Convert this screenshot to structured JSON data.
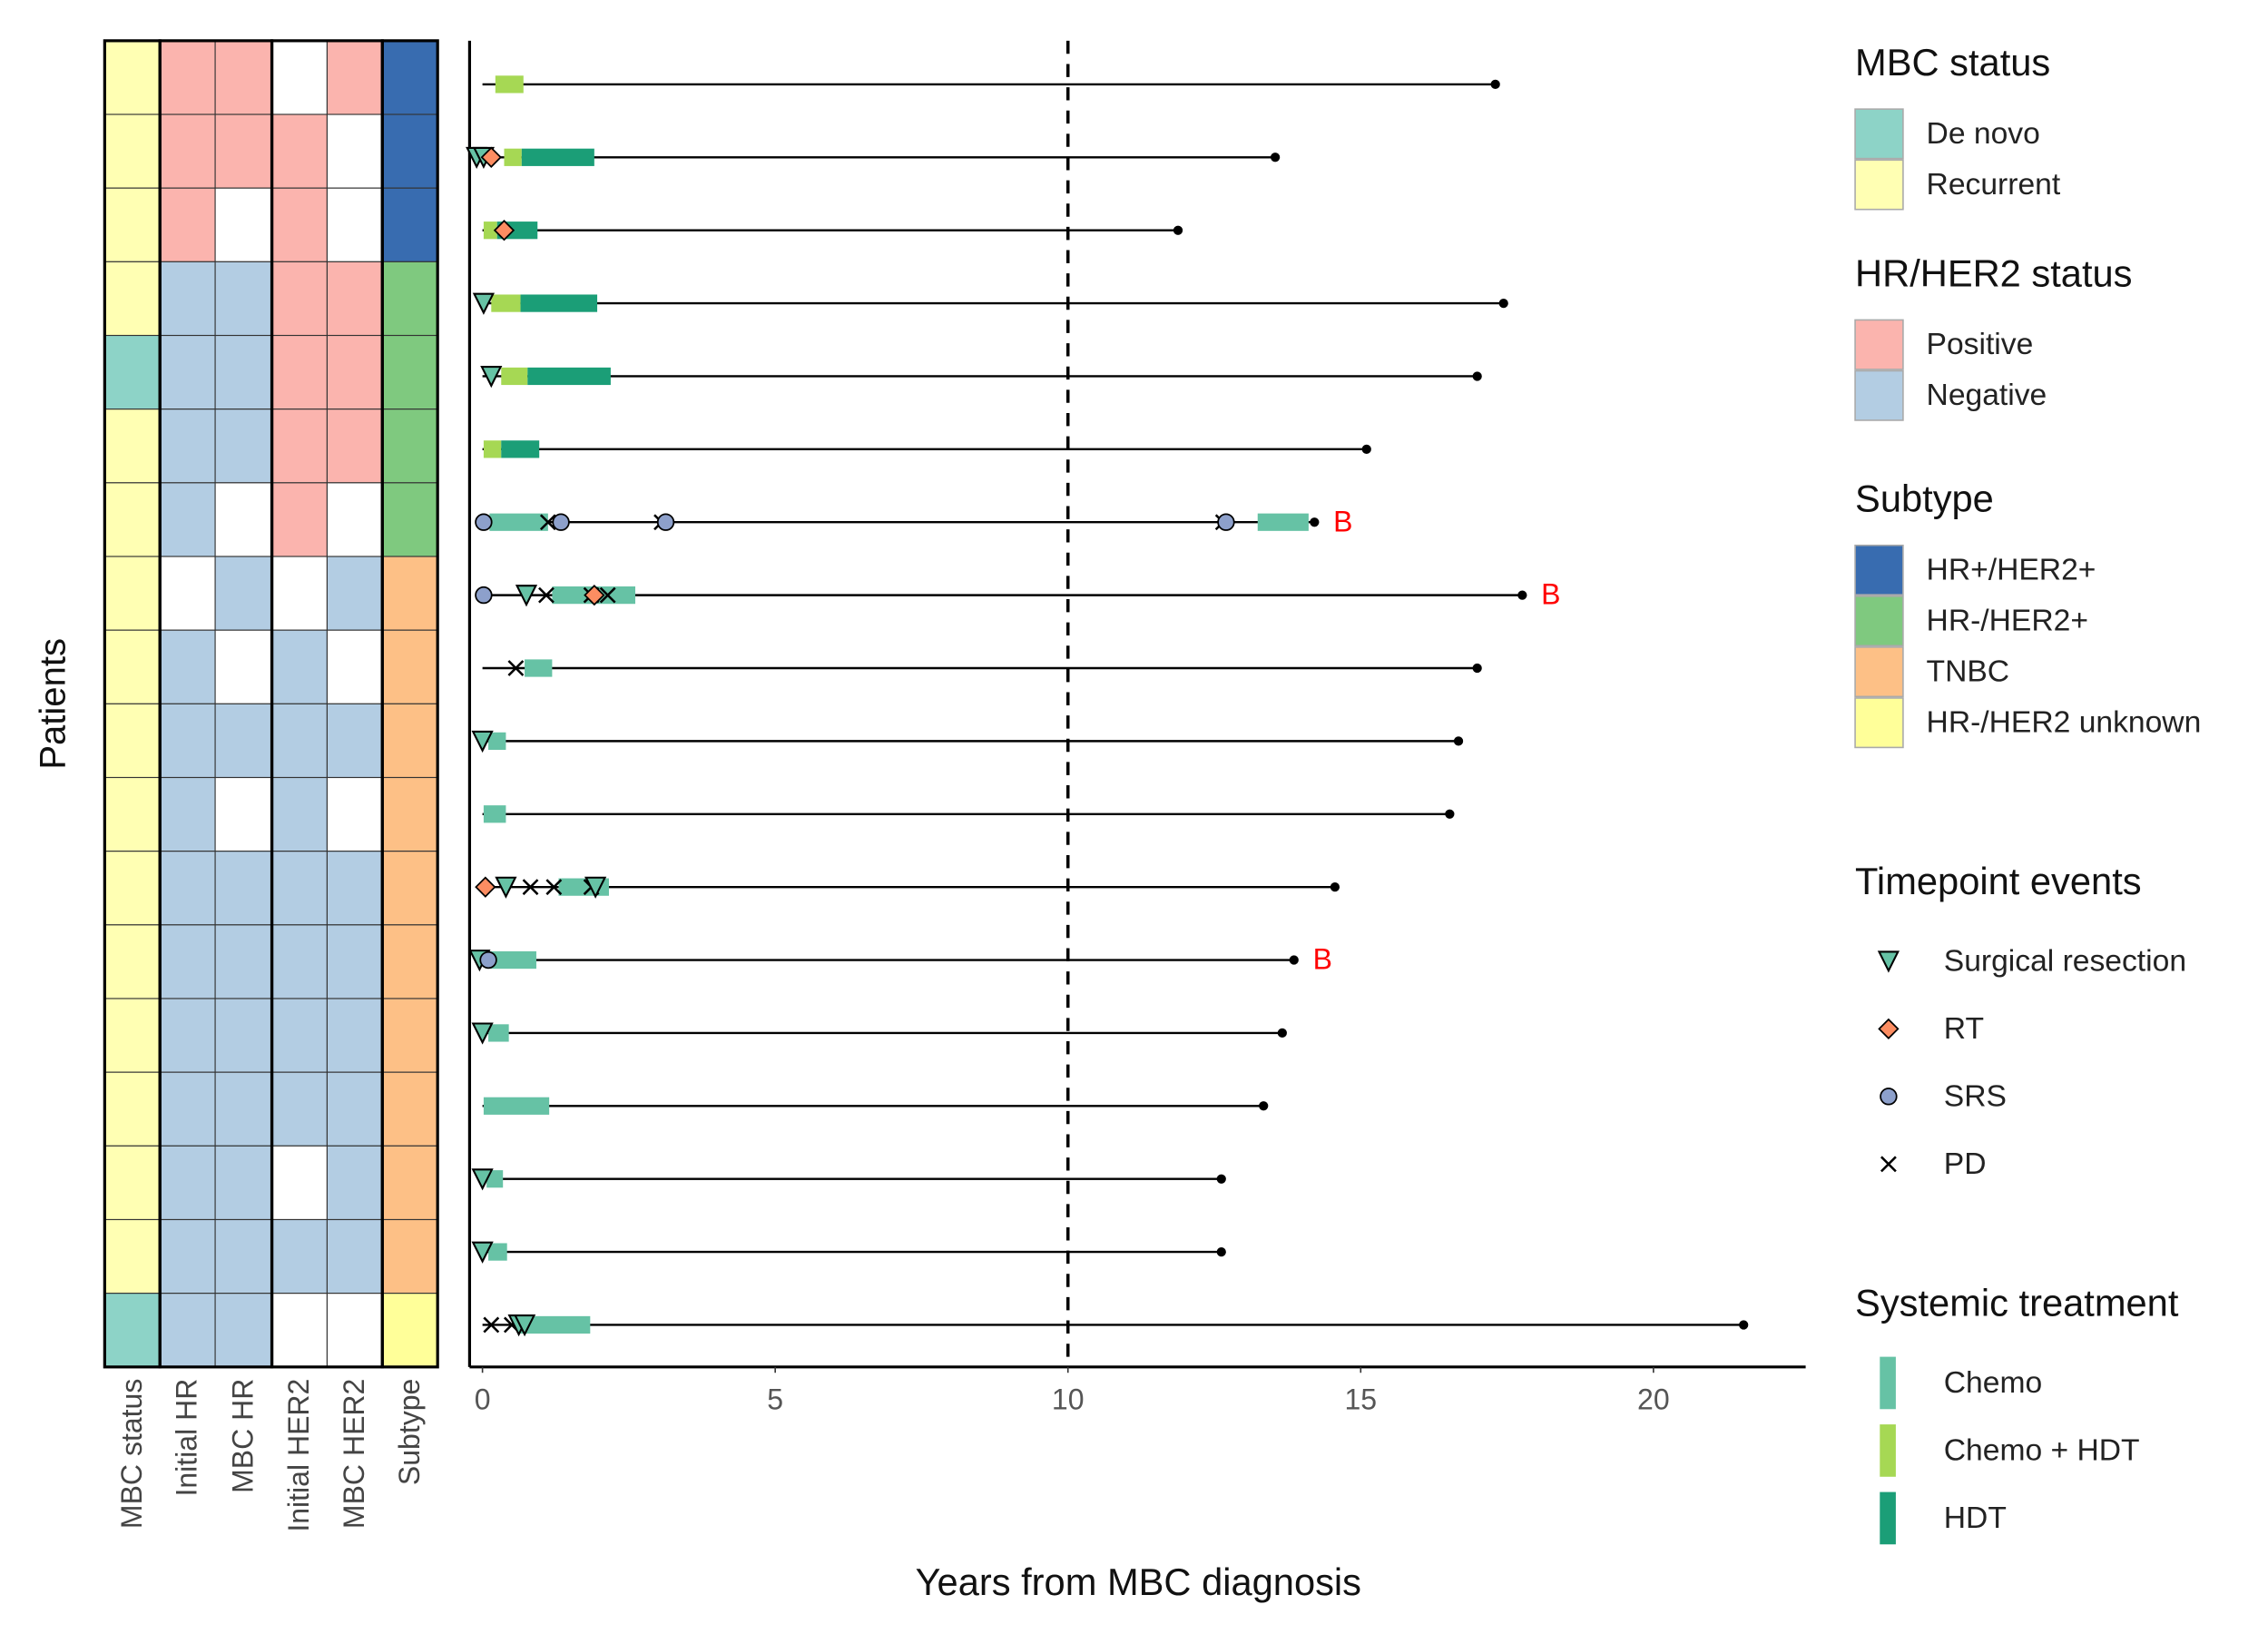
{
  "chart_data": [
    {
      "type": "heatmap",
      "ylabel": "Patients",
      "columns": [
        "MBC status",
        "Initial HR",
        "MBC HR",
        "Initial HER2",
        "MBC HER2",
        "Subtype"
      ],
      "rows": [
        [
          "Recurrent",
          "Positive",
          "Positive",
          null,
          "Positive",
          "HR+/HER2+"
        ],
        [
          "Recurrent",
          "Positive",
          "Positive",
          "Positive",
          null,
          "HR+/HER2+"
        ],
        [
          "Recurrent",
          "Positive",
          null,
          "Positive",
          null,
          "HR+/HER2+"
        ],
        [
          "Recurrent",
          "Negative",
          "Negative",
          "Positive",
          "Positive",
          "HR-/HER2+"
        ],
        [
          "De novo",
          "Negative",
          "Negative",
          "Positive",
          "Positive",
          "HR-/HER2+"
        ],
        [
          "Recurrent",
          "Negative",
          "Negative",
          "Positive",
          "Positive",
          "HR-/HER2+"
        ],
        [
          "Recurrent",
          "Negative",
          null,
          "Positive",
          null,
          "HR-/HER2+"
        ],
        [
          "Recurrent",
          null,
          "Negative",
          null,
          "Negative",
          "TNBC"
        ],
        [
          "Recurrent",
          "Negative",
          null,
          "Negative",
          null,
          "TNBC"
        ],
        [
          "Recurrent",
          "Negative",
          "Negative",
          "Negative",
          "Negative",
          "TNBC"
        ],
        [
          "Recurrent",
          "Negative",
          null,
          "Negative",
          null,
          "TNBC"
        ],
        [
          "Recurrent",
          "Negative",
          "Negative",
          "Negative",
          "Negative",
          "TNBC"
        ],
        [
          "Recurrent",
          "Negative",
          "Negative",
          "Negative",
          "Negative",
          "TNBC"
        ],
        [
          "Recurrent",
          "Negative",
          "Negative",
          "Negative",
          "Negative",
          "TNBC"
        ],
        [
          "Recurrent",
          "Negative",
          "Negative",
          "Negative",
          "Negative",
          "TNBC"
        ],
        [
          "Recurrent",
          "Negative",
          "Negative",
          null,
          "Negative",
          "TNBC"
        ],
        [
          "Recurrent",
          "Negative",
          "Negative",
          "Negative",
          "Negative",
          "TNBC"
        ],
        [
          "De novo",
          "Negative",
          "Negative",
          null,
          null,
          "HR-/HER2 unknown"
        ]
      ]
    },
    {
      "type": "swimmer",
      "xlabel": "Years from MBC diagnosis",
      "xlim": [
        -0.22,
        22.6
      ],
      "xticks": [
        0,
        5,
        10,
        15,
        20
      ],
      "reference_line": 10,
      "patients": [
        {
          "start": 0,
          "end": 17.3,
          "treatments": [
            {
              "start": 0.22,
              "end": 0.7,
              "type": "Chemo + HDT"
            }
          ],
          "events": []
        },
        {
          "start": 0,
          "end": 13.54,
          "treatments": [
            {
              "start": 0.37,
              "end": 0.67,
              "type": "Chemo + HDT"
            },
            {
              "start": 0.67,
              "end": 1.91,
              "type": "HDT"
            }
          ],
          "events": [
            {
              "x": -0.1,
              "type": "Surgical resection"
            },
            {
              "x": 0.02,
              "type": "Surgical resection"
            },
            {
              "x": 0.15,
              "type": "RT"
            }
          ]
        },
        {
          "start": 0,
          "end": 11.88,
          "treatments": [
            {
              "start": 0.02,
              "end": 0.25,
              "type": "Chemo + HDT"
            },
            {
              "start": 0.25,
              "end": 0.94,
              "type": "HDT"
            }
          ],
          "events": [
            {
              "x": 0.37,
              "type": "RT"
            }
          ]
        },
        {
          "start": 0,
          "end": 17.44,
          "treatments": [
            {
              "start": 0.15,
              "end": 0.65,
              "type": "Chemo + HDT"
            },
            {
              "start": 0.65,
              "end": 1.96,
              "type": "HDT"
            }
          ],
          "events": [
            {
              "x": 0.02,
              "type": "Surgical resection"
            }
          ]
        },
        {
          "start": 0,
          "end": 16.99,
          "treatments": [
            {
              "start": 0.32,
              "end": 0.77,
              "type": "Chemo + HDT"
            },
            {
              "start": 0.77,
              "end": 2.19,
              "type": "HDT"
            }
          ],
          "events": [
            {
              "x": 0.15,
              "type": "Surgical resection"
            }
          ]
        },
        {
          "start": 0,
          "end": 15.1,
          "treatments": [
            {
              "start": 0.02,
              "end": 0.32,
              "type": "Chemo + HDT"
            },
            {
              "start": 0.32,
              "end": 0.97,
              "type": "HDT"
            }
          ],
          "events": []
        },
        {
          "start": 0,
          "end": 14.21,
          "label": "B",
          "treatments": [
            {
              "start": 0.12,
              "end": 1.12,
              "type": "Chemo"
            },
            {
              "start": 13.24,
              "end": 14.11,
              "type": "Chemo"
            }
          ],
          "events": [
            {
              "x": 0.02,
              "type": "SRS"
            },
            {
              "x": 1.12,
              "type": "PD"
            },
            {
              "x": 1.34,
              "type": "SRS"
            },
            {
              "x": 3.06,
              "type": "PD"
            },
            {
              "x": 3.13,
              "type": "SRS"
            },
            {
              "x": 12.65,
              "type": "PD"
            },
            {
              "x": 12.7,
              "type": "SRS"
            }
          ]
        },
        {
          "start": 0,
          "end": 17.76,
          "label": "B",
          "treatments": [
            {
              "start": 1.19,
              "end": 2.61,
              "type": "Chemo"
            }
          ],
          "events": [
            {
              "x": 0.02,
              "type": "SRS"
            },
            {
              "x": 0.75,
              "type": "Surgical resection"
            },
            {
              "x": 1.09,
              "type": "PD"
            },
            {
              "x": 1.86,
              "type": "PD"
            },
            {
              "x": 1.91,
              "type": "RT"
            },
            {
              "x": 2.14,
              "type": "PD"
            }
          ]
        },
        {
          "start": 0,
          "end": 16.99,
          "treatments": [
            {
              "start": 0.72,
              "end": 1.19,
              "type": "Chemo"
            }
          ],
          "events": [
            {
              "x": 0.57,
              "type": "PD"
            }
          ]
        },
        {
          "start": 0,
          "end": 16.67,
          "treatments": [
            {
              "start": 0.1,
              "end": 0.4,
              "type": "Chemo"
            }
          ],
          "events": [
            {
              "x": 0,
              "type": "Surgical resection"
            }
          ]
        },
        {
          "start": 0,
          "end": 16.52,
          "treatments": [
            {
              "start": 0.02,
              "end": 0.4,
              "type": "Chemo"
            }
          ],
          "events": []
        },
        {
          "start": 0,
          "end": 14.56,
          "treatments": [
            {
              "start": 1.3,
              "end": 2.16,
              "type": "Chemo"
            }
          ],
          "events": [
            {
              "x": 0.05,
              "type": "RT"
            },
            {
              "x": 0.4,
              "type": "Surgical resection"
            },
            {
              "x": 0.82,
              "type": "PD"
            },
            {
              "x": 1.22,
              "type": "PD"
            },
            {
              "x": 1.86,
              "type": "PD"
            },
            {
              "x": 1.93,
              "type": "Surgical resection"
            }
          ]
        },
        {
          "start": 0,
          "end": 13.86,
          "label": "B",
          "treatments": [
            {
              "start": 0.12,
              "end": 0.92,
              "type": "Chemo"
            }
          ],
          "events": [
            {
              "x": -0.05,
              "type": "Surgical resection"
            },
            {
              "x": 0.1,
              "type": "SRS"
            }
          ]
        },
        {
          "start": 0,
          "end": 13.66,
          "treatments": [
            {
              "start": 0.1,
              "end": 0.45,
              "type": "Chemo"
            }
          ],
          "events": [
            {
              "x": 0,
              "type": "Surgical resection"
            }
          ]
        },
        {
          "start": 0,
          "end": 13.34,
          "treatments": [
            {
              "start": 0.02,
              "end": 1.14,
              "type": "Chemo"
            }
          ],
          "events": []
        },
        {
          "start": 0,
          "end": 12.62,
          "treatments": [
            {
              "start": 0.07,
              "end": 0.35,
              "type": "Chemo"
            }
          ],
          "events": [
            {
              "x": 0,
              "type": "Surgical resection"
            }
          ]
        },
        {
          "start": 0,
          "end": 12.62,
          "treatments": [
            {
              "start": 0.1,
              "end": 0.42,
              "type": "Chemo"
            }
          ],
          "events": [
            {
              "x": 0,
              "type": "Surgical resection"
            }
          ]
        },
        {
          "start": 0,
          "end": 21.54,
          "treatments": [
            {
              "start": 0.62,
              "end": 1.84,
              "type": "Chemo"
            }
          ],
          "events": [
            {
              "x": 0.15,
              "type": "PD"
            },
            {
              "x": 0.5,
              "type": "PD"
            },
            {
              "x": 0.62,
              "type": "Surgical resection"
            },
            {
              "x": 0.72,
              "type": "Surgical resection"
            }
          ]
        }
      ]
    }
  ],
  "legends": [
    {
      "title": "MBC status",
      "key": "box",
      "items": [
        {
          "name": "De novo",
          "color": "#8dd3c7"
        },
        {
          "name": "Recurrent",
          "color": "#ffffb3"
        }
      ]
    },
    {
      "title": "HR/HER2 status",
      "key": "box",
      "items": [
        {
          "name": "Positive",
          "color": "#fbb4ae"
        },
        {
          "name": "Negative",
          "color": "#b3cde3"
        }
      ]
    },
    {
      "title": "Subtype",
      "key": "box",
      "items": [
        {
          "name": "HR+/HER2+",
          "color": "#386cb0"
        },
        {
          "name": "HR-/HER2+",
          "color": "#7fc97f"
        },
        {
          "name": "TNBC",
          "color": "#fdc086"
        },
        {
          "name": "HR-/HER2 unknown",
          "color": "#ffff99"
        }
      ]
    },
    {
      "title": "Timepoint events",
      "key": "symbol",
      "items": [
        {
          "name": "Surgical resection",
          "color": "#66c2a5",
          "shape": "triangle"
        },
        {
          "name": "RT",
          "color": "#fc8d62",
          "shape": "diamond"
        },
        {
          "name": "SRS",
          "color": "#8da0cb",
          "shape": "circle"
        },
        {
          "name": "PD",
          "color": "#000000",
          "shape": "cross"
        }
      ]
    },
    {
      "title": "Systemic treatment",
      "key": "bar",
      "items": [
        {
          "name": "Chemo",
          "color": "#66c2a5"
        },
        {
          "name": "Chemo + HDT",
          "color": "#a6d854"
        },
        {
          "name": "HDT",
          "color": "#1b9e77"
        }
      ]
    }
  ]
}
